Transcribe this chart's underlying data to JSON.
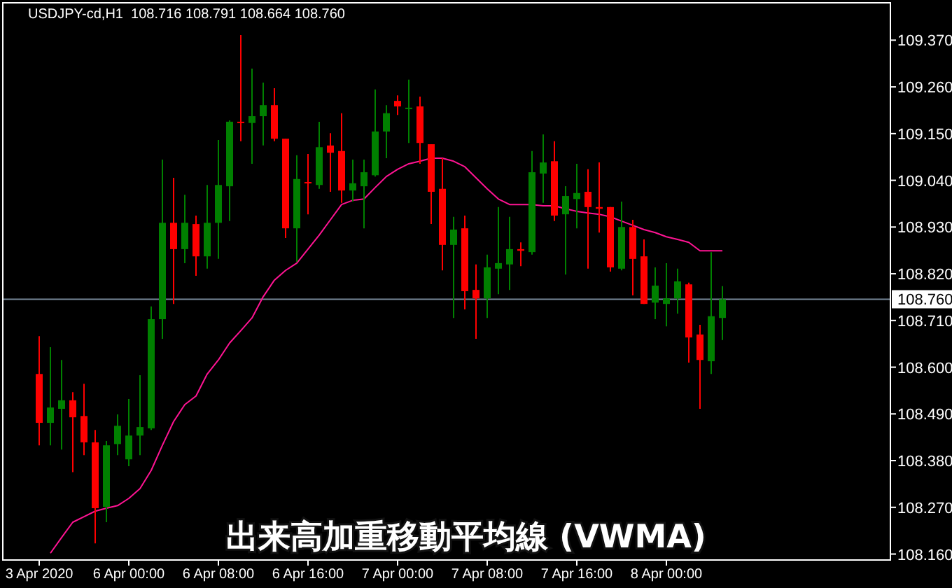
{
  "chart_data": {
    "type": "candlestick",
    "title": "出来高加重移動平均線 (VWMA)",
    "annotations": [
      "USDJPY-cd,H1  108.716 108.791 108.664 108.760"
    ],
    "categories": [
      "3 Apr 2020",
      null,
      null,
      null,
      null,
      null,
      null,
      null,
      "6 Apr 00:00",
      null,
      null,
      null,
      null,
      null,
      null,
      null,
      "6 Apr 08:00",
      null,
      null,
      null,
      null,
      null,
      null,
      null,
      "6 Apr 16:00",
      null,
      null,
      null,
      null,
      null,
      null,
      null,
      "7 Apr 00:00",
      null,
      null,
      null,
      null,
      null,
      null,
      null,
      "7 Apr 08:00",
      null,
      null,
      null,
      null,
      null,
      null,
      null,
      "7 Apr 16:00",
      null,
      null,
      null,
      null,
      null,
      null,
      null,
      "8 Apr 00:00",
      null,
      null,
      null,
      null,
      null
    ],
    "ohlc": [
      [
        108.584,
        108.673,
        108.416,
        108.469
      ],
      [
        108.469,
        108.647,
        108.416,
        108.505
      ],
      [
        108.502,
        108.617,
        108.406,
        108.522
      ],
      [
        108.522,
        108.541,
        108.353,
        108.482
      ],
      [
        108.485,
        108.561,
        108.393,
        108.423
      ],
      [
        108.423,
        108.452,
        108.185,
        108.268
      ],
      [
        108.271,
        108.426,
        108.235,
        108.416
      ],
      [
        108.419,
        108.489,
        108.393,
        108.462
      ],
      [
        108.383,
        108.525,
        108.367,
        108.439
      ],
      [
        108.439,
        108.581,
        108.393,
        108.459
      ],
      [
        108.456,
        108.743,
        108.452,
        108.713
      ],
      [
        108.713,
        109.089,
        108.667,
        108.94
      ],
      [
        108.94,
        109.046,
        108.749,
        108.878
      ],
      [
        108.878,
        109.006,
        108.845,
        108.94
      ],
      [
        108.937,
        108.957,
        108.815,
        108.861
      ],
      [
        108.861,
        109.029,
        108.832,
        108.94
      ],
      [
        108.94,
        109.135,
        108.855,
        109.029
      ],
      [
        109.026,
        109.181,
        108.944,
        109.178
      ],
      [
        109.178,
        109.382,
        109.132,
        109.175
      ],
      [
        109.175,
        109.303,
        109.079,
        109.191
      ],
      [
        109.191,
        109.27,
        109.122,
        109.217
      ],
      [
        109.217,
        109.257,
        109.132,
        109.138
      ],
      [
        109.138,
        109.138,
        108.904,
        108.927
      ],
      [
        108.927,
        109.099,
        108.848,
        109.043
      ],
      [
        109.036,
        109.102,
        108.96,
        109.033
      ],
      [
        109.029,
        109.178,
        109.02,
        109.118
      ],
      [
        109.122,
        109.151,
        109.013,
        109.105
      ],
      [
        109.109,
        109.198,
        108.987,
        109.016
      ],
      [
        109.016,
        109.089,
        108.99,
        109.033
      ],
      [
        109.026,
        109.089,
        108.927,
        109.059
      ],
      [
        109.052,
        109.254,
        109.049,
        109.155
      ],
      [
        109.155,
        109.217,
        109.092,
        109.198
      ],
      [
        109.227,
        109.24,
        109.194,
        109.214
      ],
      [
        109.208,
        109.277,
        109.128,
        109.211
      ],
      [
        109.214,
        109.237,
        109.079,
        109.128
      ],
      [
        109.125,
        109.125,
        108.937,
        109.013
      ],
      [
        109.02,
        109.092,
        108.828,
        108.888
      ],
      [
        108.888,
        108.954,
        108.716,
        108.924
      ],
      [
        108.927,
        108.957,
        108.736,
        108.779
      ],
      [
        108.782,
        108.842,
        108.667,
        108.762
      ],
      [
        108.762,
        108.865,
        108.716,
        108.835
      ],
      [
        108.832,
        108.977,
        108.772,
        108.845
      ],
      [
        108.842,
        108.954,
        108.782,
        108.878
      ],
      [
        108.878,
        108.894,
        108.838,
        108.874
      ],
      [
        108.871,
        109.109,
        108.865,
        109.059
      ],
      [
        109.056,
        109.148,
        108.987,
        109.082
      ],
      [
        109.085,
        109.132,
        108.944,
        108.957
      ],
      [
        108.96,
        109.026,
        108.818,
        109.003
      ],
      [
        108.996,
        109.079,
        108.927,
        109.01
      ],
      [
        109.013,
        109.066,
        108.832,
        108.977
      ],
      [
        108.977,
        109.082,
        108.917,
        108.973
      ],
      [
        108.977,
        108.977,
        108.825,
        108.835
      ],
      [
        108.832,
        108.99,
        108.828,
        108.93
      ],
      [
        108.93,
        108.947,
        108.769,
        108.855
      ],
      [
        108.861,
        108.901,
        108.749,
        108.749
      ],
      [
        108.752,
        108.835,
        108.713,
        108.792
      ],
      [
        108.749,
        108.845,
        108.696,
        108.762
      ],
      [
        108.762,
        108.832,
        108.726,
        108.802
      ],
      [
        108.795,
        108.799,
        108.611,
        108.67
      ],
      [
        108.677,
        108.7,
        108.502,
        108.617
      ],
      [
        108.614,
        108.871,
        108.584,
        108.72
      ],
      [
        108.716,
        108.791,
        108.664,
        108.76
      ]
    ],
    "colors": [
      "#ff0000",
      "#008000",
      "#008000",
      "#ff0000",
      "#ff0000",
      "#ff0000",
      "#008000",
      "#008000",
      "#008000",
      "#008000",
      "#008000",
      "#008000",
      "#ff0000",
      "#008000",
      "#ff0000",
      "#008000",
      "#008000",
      "#008000",
      "#ff0000",
      "#008000",
      "#008000",
      "#ff0000",
      "#ff0000",
      "#008000",
      "#ff0000",
      "#008000",
      "#ff0000",
      "#ff0000",
      "#008000",
      "#008000",
      "#008000",
      "#008000",
      "#ff0000",
      "#008000",
      "#ff0000",
      "#ff0000",
      "#ff0000",
      "#008000",
      "#ff0000",
      "#ff0000",
      "#008000",
      "#008000",
      "#008000",
      "#ff0000",
      "#008000",
      "#008000",
      "#ff0000",
      "#008000",
      "#008000",
      "#ff0000",
      "#ff0000",
      "#ff0000",
      "#008000",
      "#ff0000",
      "#ff0000",
      "#008000",
      "#008000",
      "#008000",
      "#ff0000",
      "#ff0000",
      "#008000",
      "#008000"
    ],
    "series": [
      {
        "type": "line",
        "color": "#ff1493",
        "values": [
          null,
          108.162,
          108.199,
          108.235,
          108.248,
          108.261,
          108.268,
          108.274,
          108.291,
          108.314,
          108.357,
          108.416,
          108.472,
          108.512,
          108.532,
          108.584,
          108.617,
          108.657,
          108.686,
          108.716,
          108.766,
          108.805,
          108.828,
          108.845,
          108.878,
          108.911,
          108.947,
          108.983,
          108.993,
          108.996,
          109.023,
          109.049,
          109.066,
          109.079,
          109.085,
          109.092,
          109.092,
          109.085,
          109.072,
          109.046,
          109.02,
          108.996,
          108.983,
          108.983,
          108.983,
          108.98,
          108.98,
          108.973,
          108.967,
          108.963,
          108.96,
          108.954,
          108.944,
          108.934,
          108.924,
          108.917,
          108.907,
          108.901,
          108.894,
          108.874,
          108.874,
          108.874
        ]
      }
    ],
    "ylim": [
      108.146,
      109.458
    ],
    "yticks": [
      {
        "value": 108.16,
        "label": "108.160"
      },
      {
        "value": 108.27,
        "label": "108.270"
      },
      {
        "value": 108.38,
        "label": "108.380"
      },
      {
        "value": 108.49,
        "label": "108.490"
      },
      {
        "value": 108.6,
        "label": "108.600"
      },
      {
        "value": 108.71,
        "label": "108.710"
      },
      {
        "value": 108.82,
        "label": "108.820"
      },
      {
        "value": 108.93,
        "label": "108.930"
      },
      {
        "value": 109.04,
        "label": "109.040"
      },
      {
        "value": 109.15,
        "label": "109.150"
      },
      {
        "value": 109.26,
        "label": "109.260"
      },
      {
        "value": 109.37,
        "label": "109.370"
      }
    ],
    "ref_lines": [
      {
        "axis": "y",
        "value": 108.76,
        "label": "108.760",
        "color": "#778899"
      }
    ],
    "grid": false
  }
}
